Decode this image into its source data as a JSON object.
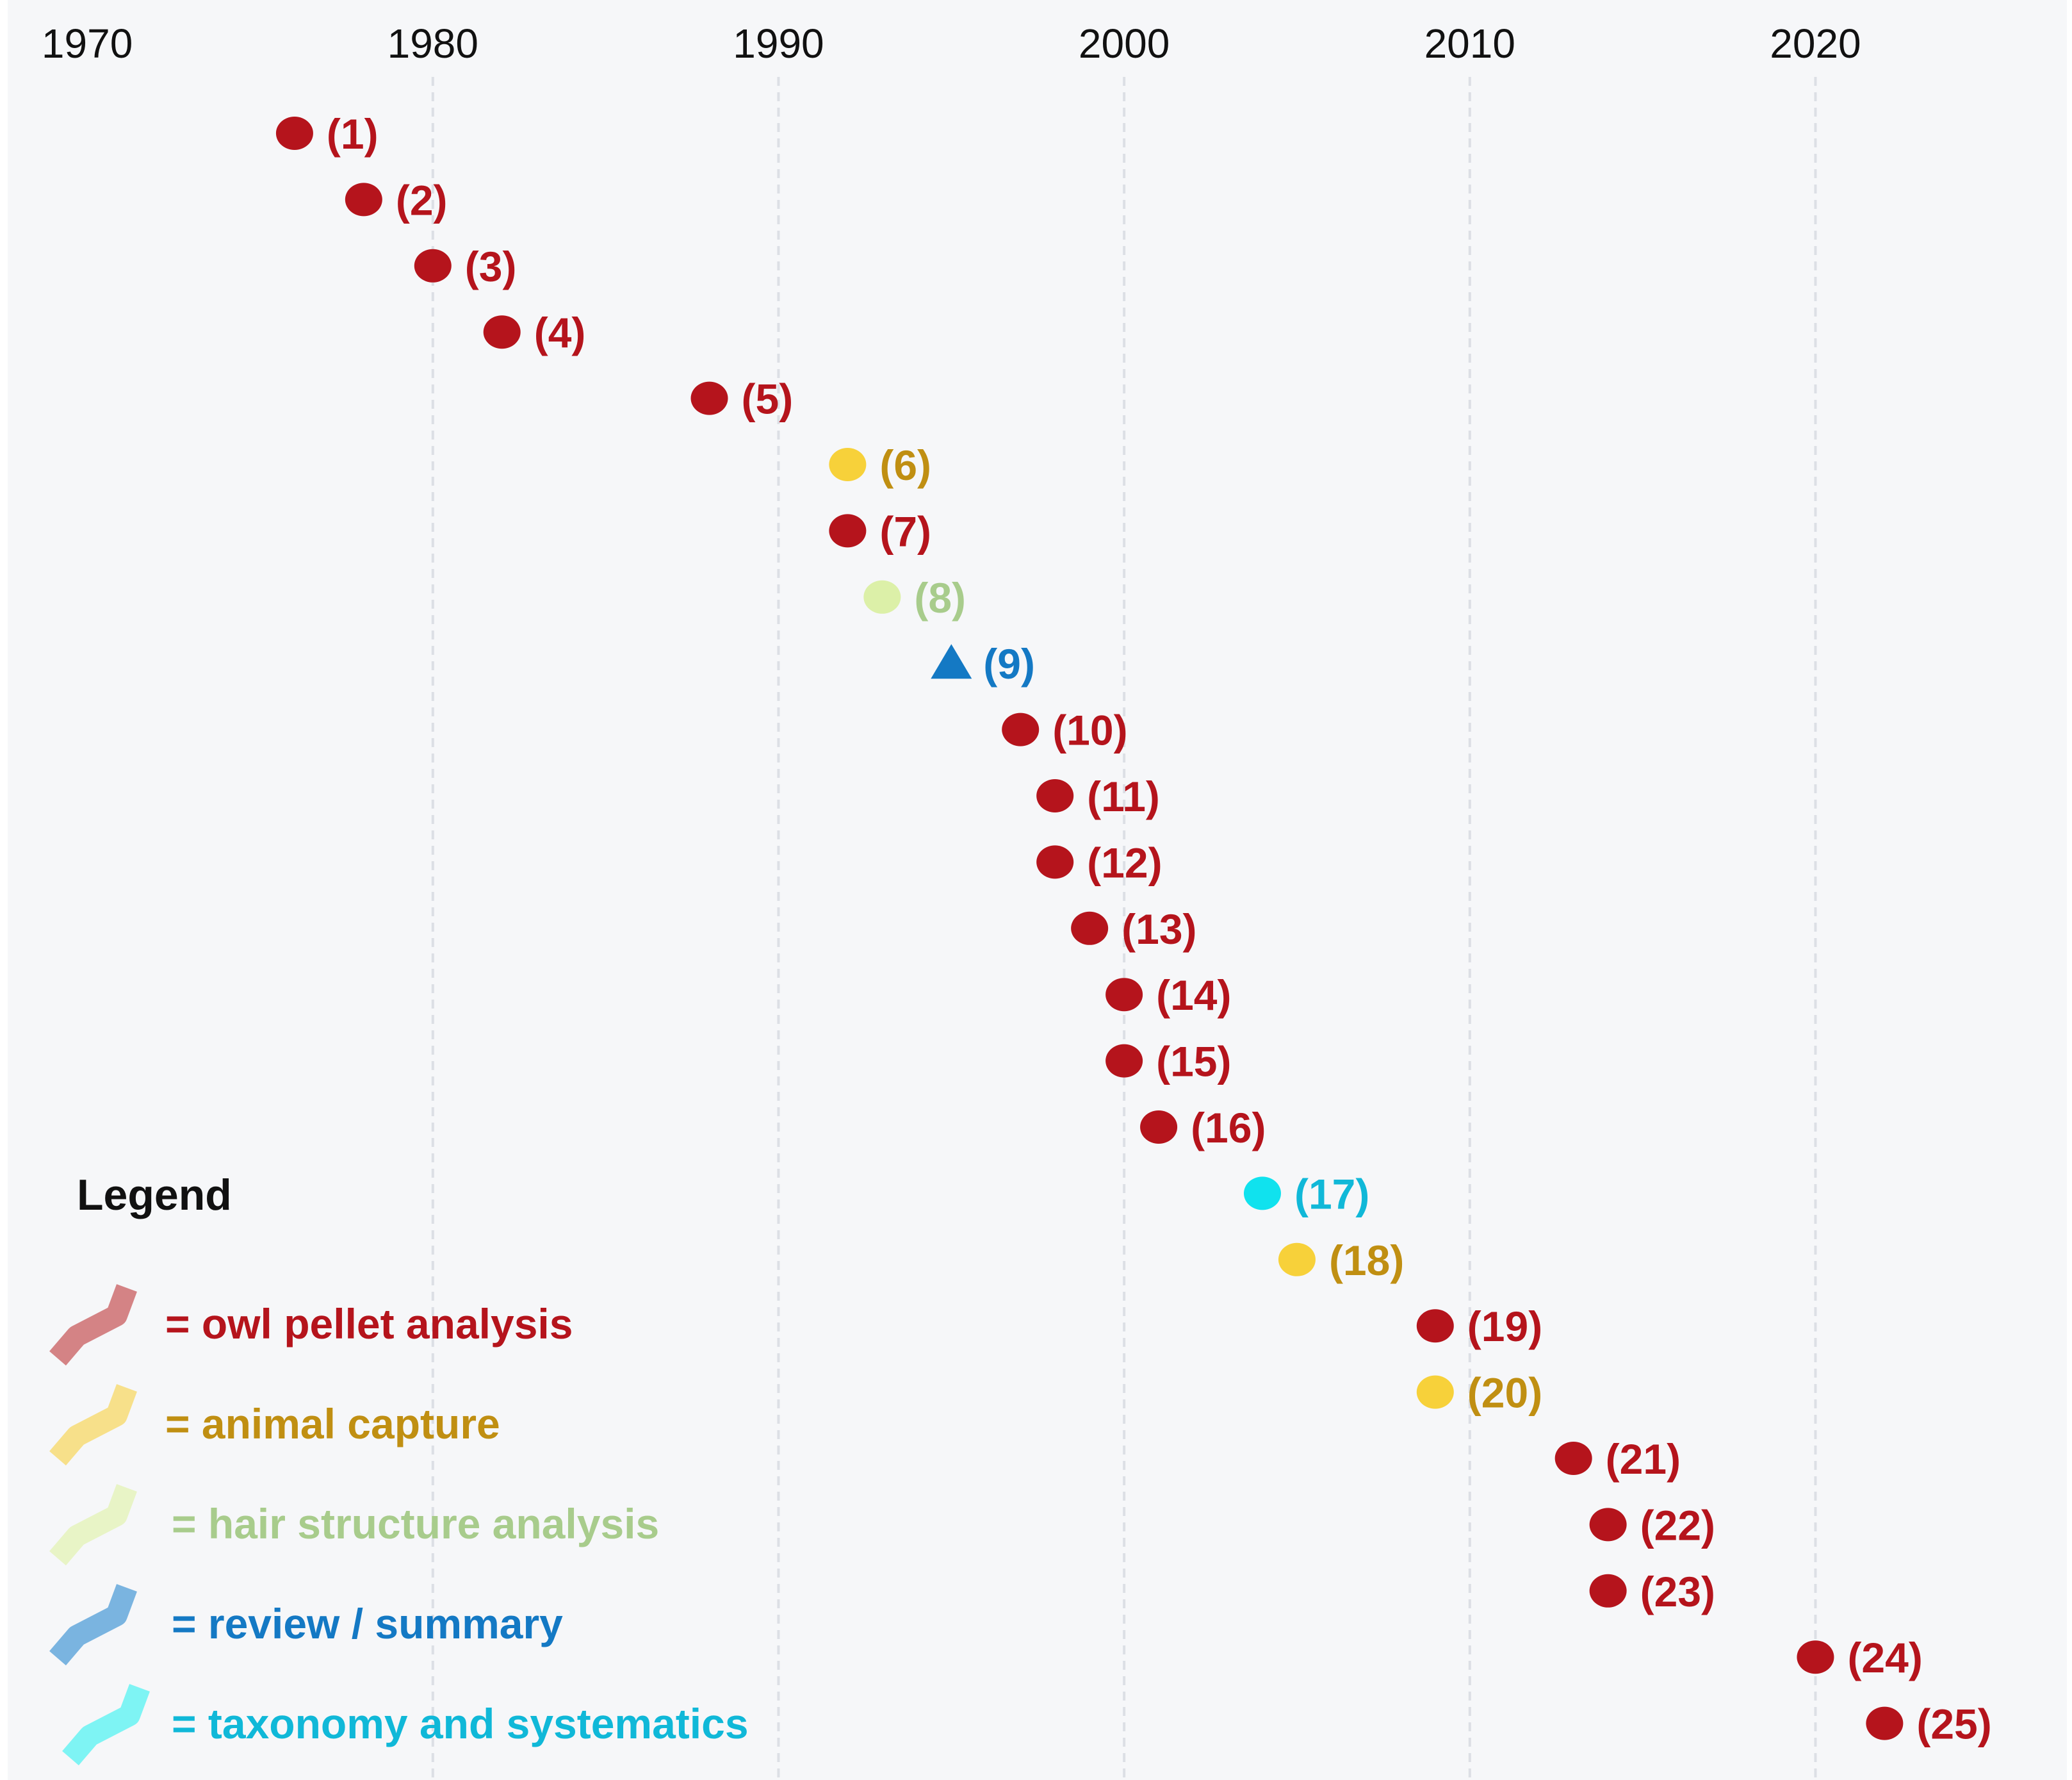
{
  "chart_data": {
    "type": "timeline-scatter",
    "title": "",
    "x_ticks": [
      1970,
      1980,
      1990,
      2000,
      2010,
      2020
    ],
    "xlim": [
      1967.7,
      2027.2
    ],
    "points": [
      {
        "label": "(1)",
        "year": 1976.0,
        "category": "owl pellet analysis"
      },
      {
        "label": "(2)",
        "year": 1978.0,
        "category": "owl pellet analysis"
      },
      {
        "label": "(3)",
        "year": 1980.0,
        "category": "owl pellet analysis"
      },
      {
        "label": "(4)",
        "year": 1982.0,
        "category": "owl pellet analysis"
      },
      {
        "label": "(5)",
        "year": 1988.0,
        "category": "owl pellet analysis"
      },
      {
        "label": "(6)",
        "year": 1992.0,
        "category": "animal capture"
      },
      {
        "label": "(7)",
        "year": 1992.0,
        "category": "owl pellet analysis"
      },
      {
        "label": "(8)",
        "year": 1993.0,
        "category": "hair structure analysis"
      },
      {
        "label": "(9)",
        "year": 1995.0,
        "category": "review / summary"
      },
      {
        "label": "(10)",
        "year": 1997.0,
        "category": "owl pellet analysis"
      },
      {
        "label": "(11)",
        "year": 1998.0,
        "category": "owl pellet analysis"
      },
      {
        "label": "(12)",
        "year": 1998.0,
        "category": "owl pellet analysis"
      },
      {
        "label": "(13)",
        "year": 1999.0,
        "category": "owl pellet analysis"
      },
      {
        "label": "(14)",
        "year": 2000.0,
        "category": "owl pellet analysis"
      },
      {
        "label": "(15)",
        "year": 2000.0,
        "category": "owl pellet analysis"
      },
      {
        "label": "(16)",
        "year": 2001.0,
        "category": "owl pellet analysis"
      },
      {
        "label": "(17)",
        "year": 2004.0,
        "category": "taxonomy and systematics"
      },
      {
        "label": "(18)",
        "year": 2005.0,
        "category": "animal capture"
      },
      {
        "label": "(19)",
        "year": 2009.0,
        "category": "owl pellet analysis"
      },
      {
        "label": "(20)",
        "year": 2009.0,
        "category": "animal capture"
      },
      {
        "label": "(21)",
        "year": 2013.0,
        "category": "owl pellet analysis"
      },
      {
        "label": "(22)",
        "year": 2014.0,
        "category": "owl pellet analysis"
      },
      {
        "label": "(23)",
        "year": 2014.0,
        "category": "owl pellet analysis"
      },
      {
        "label": "(24)",
        "year": 2020.0,
        "category": "owl pellet analysis"
      },
      {
        "label": "(25)",
        "year": 2022.0,
        "category": "owl pellet analysis"
      }
    ],
    "legend_title": "Legend",
    "legend": [
      {
        "name": "owl pellet analysis",
        "text": "= owl pellet analysis",
        "marker": "circle"
      },
      {
        "name": "animal capture",
        "text": "= animal capture",
        "marker": "circle"
      },
      {
        "name": "hair structure analysis",
        "text": "= hair structure analysis",
        "marker": "circle"
      },
      {
        "name": "review / summary",
        "text": "= review / summary",
        "marker": "triangle"
      },
      {
        "name": "taxonomy and systematics",
        "text": "= taxonomy and systematics",
        "marker": "circle"
      }
    ],
    "legend_position": "bottom-left",
    "colors": {
      "owl pellet analysis": {
        "marker": "#b5141c",
        "text": "#b5141c",
        "swatch": "#d48385"
      },
      "animal capture": {
        "marker": "#f7d13a",
        "text": "#c08f12",
        "swatch": "#f7e08a"
      },
      "hair structure analysis": {
        "marker": "#dcf0a8",
        "text": "#a8cc8c",
        "swatch": "#e8f4c6"
      },
      "review / summary": {
        "marker": "#1479c4",
        "text": "#1479c4",
        "swatch": "#7ab4e0"
      },
      "taxonomy and systematics": {
        "marker": "#10e2ee",
        "text": "#10b8d8",
        "swatch": "#7ef4f4"
      }
    },
    "background": "#f6f7f9",
    "gridlines": "vertical"
  }
}
